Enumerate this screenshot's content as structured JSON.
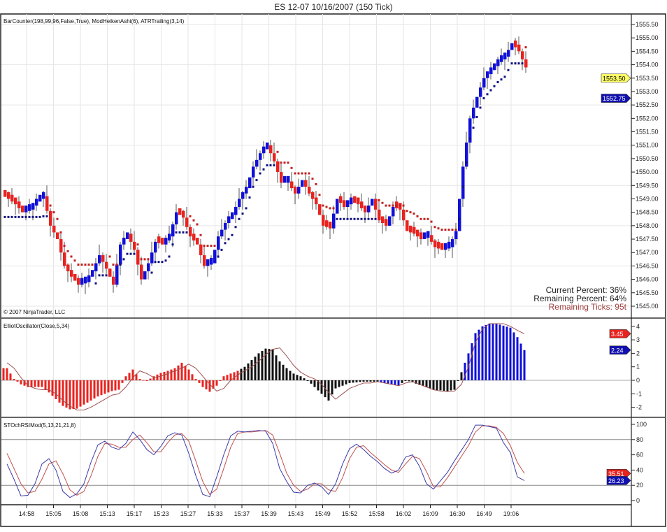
{
  "title": "ES 12-07  10/16/2007  (150 Tick)",
  "colors": {
    "up": "#1010d8",
    "down": "#e8231f",
    "neutral": "#111111",
    "signal": "#a05050",
    "k_line": "#3a3aa8",
    "d_line": "#c0504d"
  },
  "chart_data": [
    {
      "type": "candlestick",
      "panel": "price",
      "indicator_label": "BarCounter(198,99,96,False,True), ModHeikenAshi(6), ATRTrailing(3,14)",
      "copyright": "© 2007 NinjaTrader, LLC",
      "ylim": [
        1544.75,
        1555.75
      ],
      "y_ticks": [
        "1555.50",
        "1555.00",
        "1554.50",
        "1554.00",
        "1553.50",
        "1553.00",
        "1552.50",
        "1552.00",
        "1551.50",
        "1551.00",
        "1550.50",
        "1550.00",
        "1549.50",
        "1549.00",
        "1548.50",
        "1548.00",
        "1547.50",
        "1547.00",
        "1546.50",
        "1546.00",
        "1545.50",
        "1545.00"
      ],
      "markers": [
        {
          "value": "1553.50",
          "color": "#ffff66",
          "text_color": "#000000"
        },
        {
          "value": "1552.75",
          "color": "#1010b0",
          "text_color": "#ffffff"
        }
      ],
      "closes": [
        1549.0,
        1548.8,
        1548.5,
        1548.6,
        1548.9,
        1549.1,
        1548.0,
        1547.5,
        1546.5,
        1546.1,
        1545.8,
        1545.9,
        1546.3,
        1546.9,
        1546.4,
        1545.8,
        1547.3,
        1547.7,
        1547.1,
        1546.0,
        1546.6,
        1547.4,
        1547.3,
        1547.6,
        1548.5,
        1548.3,
        1547.6,
        1547.3,
        1546.5,
        1546.6,
        1547.6,
        1548.1,
        1548.4,
        1549.0,
        1549.4,
        1550.2,
        1550.7,
        1551.0,
        1550.4,
        1549.6,
        1549.6,
        1549.2,
        1549.7,
        1549.2,
        1548.8,
        1548.0,
        1547.9,
        1549.0,
        1548.7,
        1548.9,
        1548.8,
        1548.5,
        1549.0,
        1548.2,
        1548.0,
        1548.7,
        1548.6,
        1547.8,
        1547.7,
        1547.5,
        1547.6,
        1547.2,
        1547.1,
        1547.2,
        1547.8,
        1550.2,
        1552.0,
        1552.8,
        1553.5,
        1553.8,
        1554.1,
        1554.3,
        1554.8,
        1554.5,
        1553.9
      ],
      "bar_counter": {
        "current": "Current Percent: 36%",
        "remaining": "Remaining Percent: 64%",
        "ticks": "Remaining Ticks: 95t"
      }
    },
    {
      "type": "bar",
      "panel": "elliot",
      "indicator_label": "ElliotOscillator(Close,5,34)",
      "ylim": [
        -2.6,
        4.6
      ],
      "y_ticks": [
        "4",
        "3",
        "2",
        "1",
        "0",
        "-1",
        "-2"
      ],
      "markers": [
        {
          "value": "3.45",
          "color": "#e8231f"
        },
        {
          "value": "2.24",
          "color": "#1010b0"
        }
      ],
      "values": [
        0.9,
        0.1,
        -0.3,
        -0.5,
        -0.5,
        -0.5,
        -0.9,
        -1.4,
        -1.9,
        -2.15,
        -2.1,
        -1.8,
        -1.5,
        -1.2,
        -1.0,
        -0.8,
        -0.7,
        0.3,
        0.8,
        0.1,
        -0.05,
        0.3,
        0.55,
        0.7,
        0.9,
        1.3,
        0.8,
        0.1,
        -0.5,
        -0.85,
        -0.4,
        0.3,
        0.5,
        0.7,
        1.0,
        1.5,
        2.0,
        2.35,
        2.3,
        1.4,
        0.9,
        0.5,
        0.3,
        0.0,
        -0.5,
        -1.0,
        -1.5,
        -0.6,
        -0.4,
        -0.2,
        -0.15,
        -0.1,
        -0.1,
        -0.1,
        -0.2,
        -0.3,
        -0.4,
        0.0,
        -0.15,
        -0.35,
        -0.5,
        -0.7,
        -0.75,
        -0.8,
        -0.7,
        0.6,
        2.0,
        3.5,
        4.0,
        4.2,
        4.2,
        4.05,
        3.9,
        3.2,
        2.24
      ],
      "signal": [
        1.3,
        0.9,
        0.2,
        -0.4,
        -0.6,
        -0.7,
        -0.7,
        -1.0,
        -1.5,
        -1.9,
        -2.2,
        -2.2,
        -2.0,
        -1.7,
        -1.4,
        -1.1,
        -1.0,
        -0.5,
        0.2,
        0.7,
        0.5,
        0.2,
        0.3,
        0.5,
        0.7,
        0.9,
        1.2,
        0.9,
        0.3,
        -0.3,
        -0.8,
        -0.6,
        0.0,
        0.4,
        0.7,
        1.0,
        1.4,
        1.9,
        2.3,
        2.4,
        1.8,
        1.1,
        0.6,
        0.3,
        0.1,
        -0.3,
        -0.9,
        -1.4,
        -1.0,
        -0.6,
        -0.4,
        -0.2,
        -0.2,
        -0.1,
        -0.2,
        -0.3,
        -0.4,
        -0.2,
        -0.1,
        -0.3,
        -0.5,
        -0.7,
        -0.8,
        -0.85,
        -0.8,
        -0.3,
        1.0,
        2.8,
        3.8,
        4.2,
        4.2,
        4.2,
        4.0,
        3.7,
        3.45
      ],
      "color_segments": [
        {
          "from": 0,
          "to": 33,
          "color": "#e8231f"
        },
        {
          "from": 34,
          "to": 53,
          "color": "#111111"
        },
        {
          "from": 54,
          "to": 56,
          "color": "#1010d8"
        },
        {
          "from": 57,
          "to": 65,
          "color": "#111111"
        },
        {
          "from": 66,
          "to": 74,
          "color": "#1010d8"
        }
      ]
    },
    {
      "type": "line",
      "panel": "stoch",
      "indicator_label": "STOchRSIMod(5,13,21,21,8)",
      "ylim": [
        -5,
        105
      ],
      "y_ticks": [
        "100",
        "80",
        "60",
        "40",
        "20",
        "0"
      ],
      "reference_lines": [
        80,
        20
      ],
      "markers": [
        {
          "value": "35.51",
          "color": "#e8231f"
        },
        {
          "value": "26.23",
          "color": "#1010b0"
        }
      ],
      "k": [
        48,
        28,
        6,
        7,
        22,
        48,
        55,
        40,
        12,
        4,
        9,
        22,
        50,
        73,
        78,
        70,
        67,
        75,
        90,
        80,
        67,
        60,
        71,
        85,
        89,
        86,
        62,
        33,
        8,
        5,
        31,
        60,
        85,
        91,
        90,
        91,
        92,
        91,
        75,
        42,
        25,
        11,
        10,
        20,
        23,
        18,
        8,
        22,
        48,
        68,
        74,
        67,
        58,
        51,
        42,
        36,
        40,
        57,
        60,
        45,
        22,
        15,
        26,
        37,
        52,
        66,
        80,
        99,
        99,
        97,
        95,
        76,
        63,
        31,
        26.23
      ],
      "d": [
        62,
        42,
        22,
        10,
        12,
        28,
        48,
        52,
        35,
        14,
        7,
        12,
        32,
        58,
        75,
        74,
        70,
        70,
        80,
        86,
        76,
        64,
        64,
        76,
        86,
        88,
        78,
        52,
        25,
        8,
        15,
        42,
        70,
        88,
        90,
        90,
        91,
        92,
        86,
        62,
        36,
        20,
        12,
        15,
        22,
        22,
        14,
        12,
        30,
        55,
        70,
        72,
        63,
        55,
        47,
        40,
        37,
        48,
        58,
        55,
        38,
        18,
        18,
        30,
        44,
        58,
        72,
        90,
        98,
        98,
        96,
        88,
        72,
        50,
        35.51
      ]
    }
  ],
  "x_axis": {
    "ticks": [
      "14:58",
      "15:05",
      "15:08",
      "15:13",
      "15:17",
      "15:23",
      "15:27",
      "15:33",
      "15:37",
      "15:39",
      "15:43",
      "15:49",
      "15:52",
      "15:58",
      "16:02",
      "16:09",
      "16:30",
      "16:49",
      "19:06"
    ]
  }
}
